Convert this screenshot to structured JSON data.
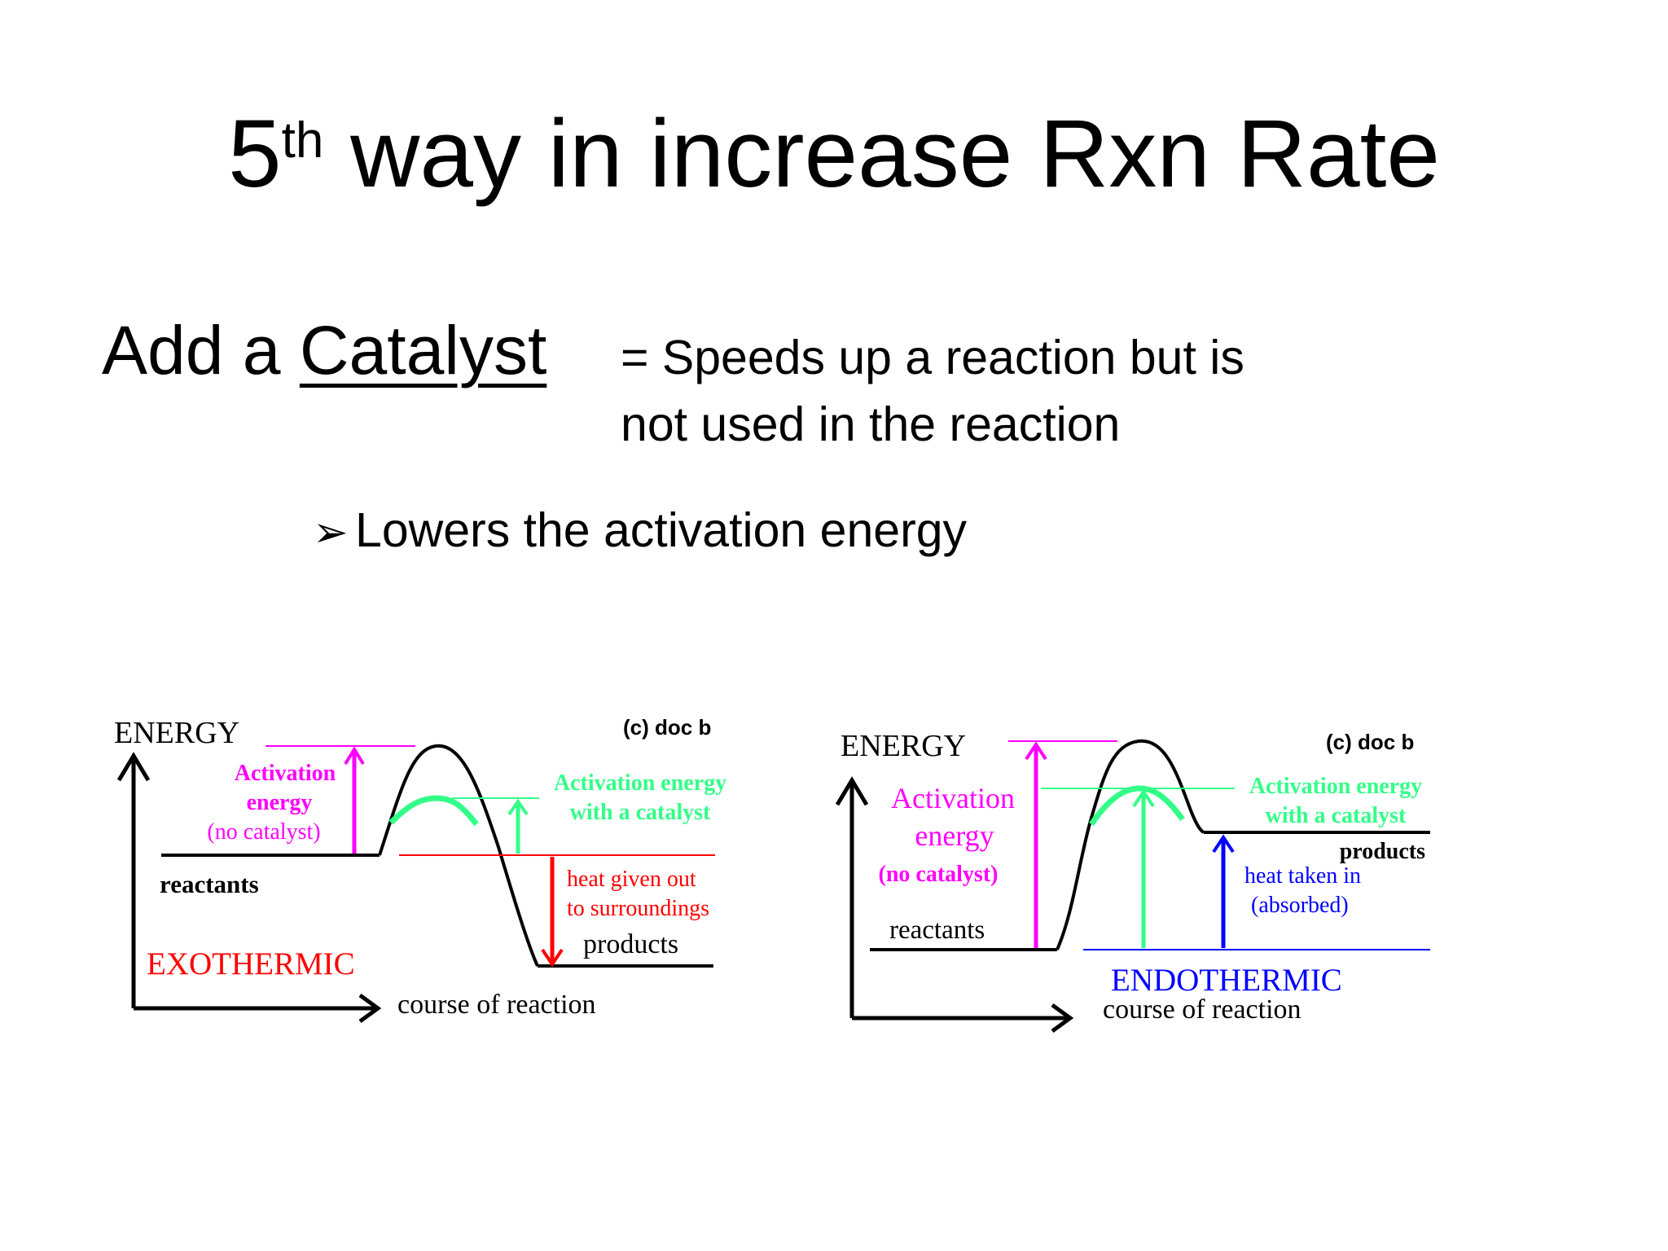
{
  "title": {
    "main": "5",
    "superscript": "th",
    "rest": "way in increase Rxn Rate"
  },
  "subheading": {
    "prefix": "Add a",
    "term": "Catalyst"
  },
  "definition": {
    "line1": "= Speeds up a reaction but is",
    "line2": "not used in the reaction"
  },
  "bullet": {
    "marker": "➢",
    "text": "Lowers the activation energy"
  },
  "colors": {
    "activation_no_catalyst": "#ff00ff",
    "activation_catalyst": "#33ff88",
    "heat_out": "#ff0000",
    "heat_in": "#0000ff",
    "curve": "#000000"
  },
  "exothermic": {
    "energy_axis": "ENERGY",
    "copyright": "(c) doc b",
    "activation_line1": "Activation",
    "activation_line2": "energy",
    "activation_line3": "(no catalyst)",
    "catalyst_line1": "Activation energy",
    "catalyst_line2": "with a catalyst",
    "reactants": "reactants",
    "heat_line1": "heat given out",
    "heat_line2": "to surroundings",
    "products": "products",
    "type_label": "EXOTHERMIC",
    "x_axis": "course of reaction"
  },
  "endothermic": {
    "energy_axis": "ENERGY",
    "copyright": "(c) doc b",
    "activation_line1": "Activation",
    "activation_line2": "energy",
    "activation_line3": "(no catalyst)",
    "catalyst_line1": "Activation energy",
    "catalyst_line2": "with a catalyst",
    "products": "products",
    "heat_line1": "heat taken in",
    "heat_line2": "(absorbed)",
    "reactants": "reactants",
    "type_label": "ENDOTHERMIC",
    "x_axis": "course of reaction"
  }
}
